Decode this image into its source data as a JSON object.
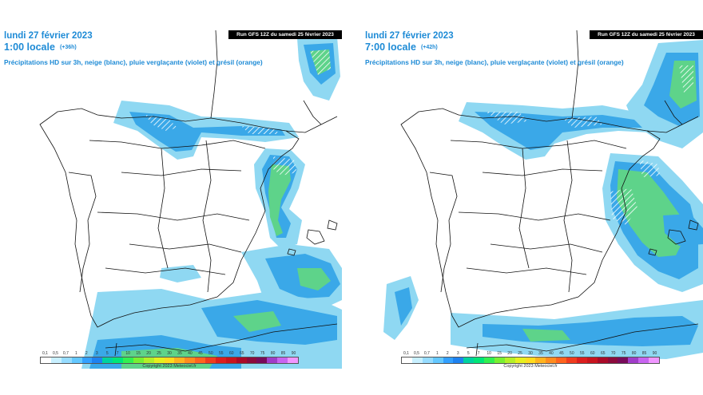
{
  "panels": [
    {
      "date": "lundi 27 février 2023",
      "time": "1:00 locale",
      "offset": "(+36h)",
      "subtitle": "Précipitations HD sur 3h, neige (blanc), pluie verglaçante (violet) et grésil (orange)",
      "run": "Run GFS 12Z du samedi 25 février 2023"
    },
    {
      "date": "lundi 27 février 2023",
      "time": "7:00 locale",
      "offset": "(+42h)",
      "subtitle": "Précipitations HD sur 3h, neige (blanc), pluie verglaçante (violet) et grésil (orange)",
      "run": "Run GFS 12Z du samedi 25 février 2023"
    }
  ],
  "scale": {
    "labels": [
      "0,1",
      "0,5",
      "0,7",
      "1",
      "2",
      "3",
      "5",
      "7",
      "10",
      "15",
      "20",
      "25",
      "30",
      "35",
      "40",
      "45",
      "50",
      "55",
      "60",
      "65",
      "70",
      "75",
      "80",
      "85",
      "90"
    ],
    "colors": [
      "#ffffff",
      "#c8f0ff",
      "#96dcff",
      "#64c8ff",
      "#32a0ff",
      "#1e82f0",
      "#00d2a0",
      "#00e678",
      "#32f050",
      "#78f032",
      "#b4f028",
      "#e6f01e",
      "#ffdc1e",
      "#ffb41e",
      "#ff8c1e",
      "#ff641e",
      "#f03c1e",
      "#dc1e1e",
      "#c8141e",
      "#aa0a28",
      "#8c0a3c",
      "#780a5a",
      "#a03cc8",
      "#c864f0",
      "#f096ff"
    ],
    "copyright": "Copyright 2023 Meteociel.fr"
  },
  "legend_colors": {
    "light_rain": "#8fd8f2",
    "moderate_rain": "#3aa8e8",
    "heavy_rain": "#5ed38a",
    "snow": "#ffffff"
  }
}
